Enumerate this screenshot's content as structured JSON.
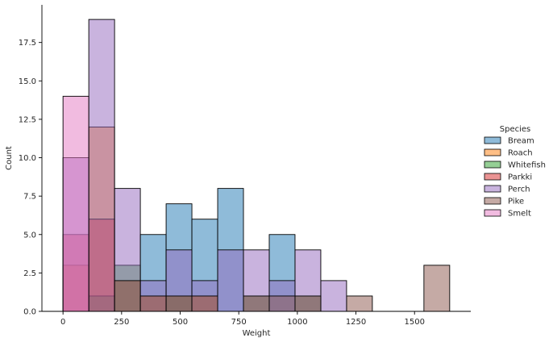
{
  "chart_data": {
    "type": "bar",
    "subtype": "overlapping-histogram",
    "xlabel": "Weight",
    "ylabel": "Count",
    "xlim": [
      -90,
      1740
    ],
    "ylim": [
      0,
      19.95
    ],
    "x_ticks": [
      0,
      250,
      500,
      750,
      1000,
      1250,
      1500
    ],
    "y_ticks": [
      0,
      2.5,
      5,
      7.5,
      10,
      12.5,
      15,
      17.5
    ],
    "bin_width": 110.0,
    "bin_starts": [
      0,
      110,
      220,
      330,
      440,
      550,
      660,
      770,
      880,
      990,
      1100,
      1210,
      1320,
      1430,
      1540
    ],
    "grid": false,
    "legend": {
      "title": "Species",
      "placement": "right"
    },
    "series": [
      {
        "name": "Bream",
        "color": "#1f77b4",
        "values": [
          0,
          0,
          0,
          5,
          7,
          6,
          8,
          0,
          5,
          0,
          0,
          0,
          0,
          0,
          0
        ]
      },
      {
        "name": "Roach",
        "color": "#ff7f0e",
        "values": [
          3,
          12,
          2,
          1,
          1,
          1,
          0,
          0,
          0,
          0,
          0,
          0,
          0,
          0,
          0
        ]
      },
      {
        "name": "Whitefish",
        "color": "#2ca02c",
        "values": [
          0,
          1,
          3,
          0,
          1,
          0,
          0,
          1,
          0,
          1,
          0,
          0,
          0,
          0,
          0
        ]
      },
      {
        "name": "Parkki",
        "color": "#d62728",
        "values": [
          5,
          6,
          0,
          0,
          0,
          0,
          0,
          0,
          0,
          0,
          0,
          0,
          0,
          0,
          0
        ]
      },
      {
        "name": "Perch",
        "color": "#9467bd",
        "values": [
          10,
          19,
          8,
          2,
          4,
          2,
          4,
          4,
          2,
          4,
          2,
          0,
          0,
          0,
          0
        ]
      },
      {
        "name": "Pike",
        "color": "#8c564b",
        "values": [
          0,
          0,
          2,
          1,
          1,
          1,
          0,
          1,
          1,
          1,
          0,
          1,
          0,
          0,
          3
        ]
      },
      {
        "name": "Smelt",
        "color": "#e377c2",
        "values": [
          14,
          0,
          0,
          0,
          0,
          0,
          0,
          0,
          0,
          0,
          0,
          0,
          0,
          0,
          0
        ]
      }
    ]
  }
}
